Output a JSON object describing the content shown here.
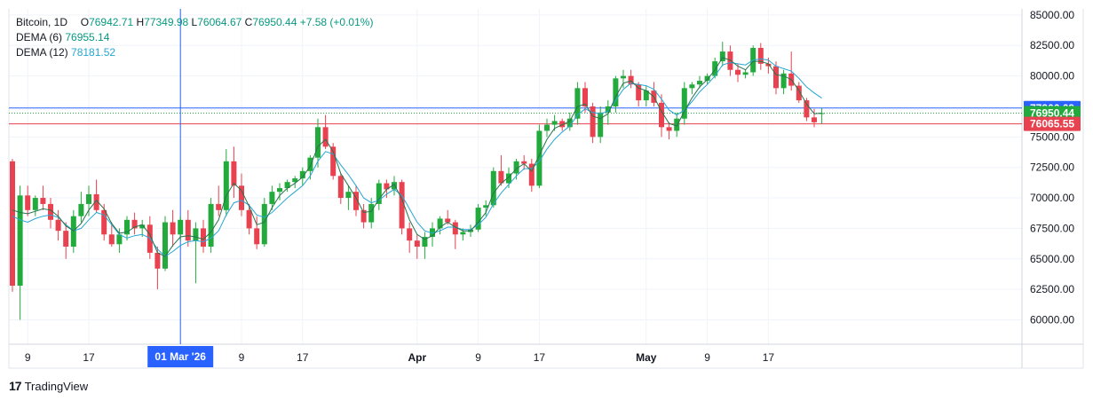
{
  "legend": {
    "symbol": "Bitcoin, 1D",
    "o_label": "O",
    "o": "76942.71",
    "h_label": "H",
    "h": "77349.98",
    "l_label": "L",
    "l": "76064.67",
    "c_label": "C",
    "c": "76950.44",
    "change": "+7.58 (+0.01%)",
    "dema6_label": "DEMA (6)",
    "dema6": "76955.14",
    "dema12_label": "DEMA (12)",
    "dema12": "78181.52"
  },
  "brand": {
    "logo": "17",
    "name": "TradingView"
  },
  "colors": {
    "up": "#22ab3c",
    "down": "#e8414f",
    "dema6": "#26734d",
    "dema12": "#26a6d4",
    "crosshair": "#2962ff"
  },
  "chart_data": {
    "type": "candlestick",
    "y_ticks": [
      "60000.00",
      "62500.00",
      "65000.00",
      "67500.00",
      "70000.00",
      "72500.00",
      "75000.00",
      "77500.00",
      "80000.00",
      "82500.00",
      "85000.00"
    ],
    "ylim": [
      58000,
      85500
    ],
    "x_ticks": [
      {
        "label": "9",
        "index": 2
      },
      {
        "label": "17",
        "index": 10
      },
      {
        "label": "01 Mar '26",
        "index": 22
      },
      {
        "label": "9",
        "index": 30
      },
      {
        "label": "17",
        "index": 38
      },
      {
        "label": "Apr",
        "index": 53
      },
      {
        "label": "9",
        "index": 61
      },
      {
        "label": "17",
        "index": 69
      },
      {
        "label": "May",
        "index": 83
      },
      {
        "label": "9",
        "index": 91
      },
      {
        "label": "17",
        "index": 99
      }
    ],
    "price_labels": [
      {
        "label": "77366.69",
        "value": 77366.69,
        "color": "#2962ff"
      },
      {
        "label": "76950.44",
        "value": 76950.44,
        "color": "#22ab3c"
      },
      {
        "label": "76065.55",
        "value": 76065.55,
        "color": "#e8414f"
      }
    ],
    "crosshair_index": 22,
    "ohlc": [
      [
        73000,
        73200,
        62300,
        62800
      ],
      [
        62800,
        71000,
        60000,
        70200
      ],
      [
        70200,
        71000,
        68500,
        69000
      ],
      [
        69000,
        70200,
        68500,
        70000
      ],
      [
        70000,
        71000,
        69000,
        69500
      ],
      [
        69500,
        70000,
        67500,
        68200
      ],
      [
        68200,
        69000,
        66500,
        67300
      ],
      [
        67300,
        68000,
        65000,
        66000
      ],
      [
        66000,
        69000,
        65500,
        68500
      ],
      [
        68500,
        70500,
        68000,
        69500
      ],
      [
        69500,
        71000,
        68500,
        70300
      ],
      [
        70300,
        71500,
        68800,
        69000
      ],
      [
        69000,
        69500,
        66500,
        67000
      ],
      [
        67000,
        68000,
        66000,
        66200
      ],
      [
        66200,
        67500,
        65500,
        67000
      ],
      [
        67000,
        68500,
        66500,
        68200
      ],
      [
        68200,
        68800,
        67000,
        67500
      ],
      [
        67500,
        68200,
        66800,
        67800
      ],
      [
        67800,
        68500,
        65000,
        65500
      ],
      [
        65500,
        66000,
        62500,
        64200
      ],
      [
        64200,
        68500,
        64000,
        68000
      ],
      [
        68000,
        69000,
        66000,
        67000
      ],
      [
        67000,
        68500,
        66500,
        68200
      ],
      [
        68200,
        69000,
        66000,
        66500
      ],
      [
        66500,
        68000,
        63000,
        67500
      ],
      [
        67500,
        68200,
        65500,
        66000
      ],
      [
        66000,
        70000,
        65500,
        69500
      ],
      [
        69500,
        71000,
        68500,
        69000
      ],
      [
        69000,
        74000,
        68500,
        73000
      ],
      [
        73000,
        74200,
        70000,
        71000
      ],
      [
        71000,
        72000,
        68500,
        69000
      ],
      [
        69000,
        69500,
        67000,
        67500
      ],
      [
        67500,
        68500,
        65800,
        66200
      ],
      [
        66200,
        70000,
        66000,
        69500
      ],
      [
        69500,
        71000,
        69000,
        70500
      ],
      [
        70500,
        71200,
        69800,
        70800
      ],
      [
        70800,
        71500,
        70500,
        71300
      ],
      [
        71300,
        71800,
        70800,
        71600
      ],
      [
        71600,
        72500,
        71000,
        72200
      ],
      [
        72200,
        73500,
        71500,
        73300
      ],
      [
        73300,
        76500,
        72500,
        75800
      ],
      [
        75800,
        76800,
        74000,
        74200
      ],
      [
        74200,
        74500,
        71500,
        71800
      ],
      [
        71800,
        72000,
        69500,
        70000
      ],
      [
        70000,
        71000,
        69000,
        70500
      ],
      [
        70500,
        71000,
        68500,
        69000
      ],
      [
        69000,
        69500,
        67500,
        68000
      ],
      [
        68000,
        70000,
        67500,
        69500
      ],
      [
        69500,
        71500,
        69000,
        71200
      ],
      [
        71200,
        71500,
        70000,
        70700
      ],
      [
        70700,
        71800,
        70200,
        71300
      ],
      [
        71300,
        71500,
        67000,
        67500
      ],
      [
        67500,
        68000,
        65500,
        66500
      ],
      [
        66500,
        67000,
        65000,
        66000
      ],
      [
        66000,
        67200,
        65000,
        66800
      ],
      [
        66800,
        68000,
        66000,
        67500
      ],
      [
        67500,
        68500,
        67000,
        68300
      ],
      [
        68300,
        69000,
        67800,
        68000
      ],
      [
        68000,
        68200,
        65800,
        67000
      ],
      [
        67000,
        67500,
        66500,
        67200
      ],
      [
        67200,
        67800,
        66800,
        67400
      ],
      [
        67400,
        69500,
        67200,
        69200
      ],
      [
        69200,
        69800,
        68500,
        69400
      ],
      [
        69400,
        72500,
        69200,
        72200
      ],
      [
        72200,
        73500,
        71000,
        71200
      ],
      [
        71200,
        72500,
        70800,
        72000
      ],
      [
        72000,
        73200,
        71500,
        73000
      ],
      [
        73000,
        73500,
        72300,
        72800
      ],
      [
        72800,
        73200,
        70500,
        71000
      ],
      [
        71000,
        76000,
        70800,
        75500
      ],
      [
        75500,
        76500,
        75000,
        76000
      ],
      [
        76000,
        76800,
        75500,
        76300
      ],
      [
        76300,
        76500,
        75500,
        75800
      ],
      [
        75800,
        77000,
        75500,
        76500
      ],
      [
        76500,
        79500,
        76000,
        79000
      ],
      [
        79000,
        79500,
        77000,
        77500
      ],
      [
        77500,
        77800,
        74500,
        75000
      ],
      [
        75000,
        77500,
        74500,
        77000
      ],
      [
        77000,
        78000,
        76000,
        77500
      ],
      [
        77500,
        80000,
        77000,
        79800
      ],
      [
        79800,
        80500,
        79000,
        80000
      ],
      [
        80000,
        80500,
        79000,
        79300
      ],
      [
        79300,
        79500,
        77500,
        78000
      ],
      [
        78000,
        79200,
        77500,
        78800
      ],
      [
        78800,
        79500,
        77500,
        77800
      ],
      [
        77800,
        78500,
        75000,
        75800
      ],
      [
        75800,
        76200,
        74800,
        75500
      ],
      [
        75500,
        77000,
        75000,
        76500
      ],
      [
        76500,
        79500,
        76000,
        79000
      ],
      [
        79000,
        79500,
        78500,
        79300
      ],
      [
        79300,
        80000,
        79000,
        79600
      ],
      [
        79600,
        80200,
        79300,
        80000
      ],
      [
        80000,
        81500,
        79800,
        81200
      ],
      [
        81200,
        82800,
        80800,
        82000
      ],
      [
        82000,
        82500,
        80000,
        80500
      ],
      [
        80500,
        81000,
        79500,
        80100
      ],
      [
        80100,
        80500,
        79800,
        80300
      ],
      [
        80300,
        82500,
        80000,
        82300
      ],
      [
        82300,
        82700,
        80500,
        81000
      ],
      [
        81000,
        81500,
        80200,
        80800
      ],
      [
        80800,
        81200,
        78500,
        79000
      ],
      [
        79000,
        80500,
        78500,
        80200
      ],
      [
        80200,
        82000,
        78800,
        79200
      ],
      [
        79200,
        79500,
        77800,
        78000
      ],
      [
        78000,
        78200,
        76300,
        76600
      ],
      [
        76600,
        77300,
        75800,
        76200
      ],
      [
        76950,
        77350,
        76060,
        76950
      ]
    ],
    "dema6": [
      69000,
      68800,
      68700,
      68900,
      69100,
      69000,
      68500,
      67700,
      67300,
      67900,
      69000,
      69800,
      69100,
      67900,
      67100,
      67200,
      67600,
      67800,
      67000,
      65500,
      65200,
      66100,
      66800,
      66900,
      66800,
      66600,
      67200,
      68200,
      70200,
      71200,
      70600,
      69300,
      67800,
      68000,
      69200,
      70200,
      70800,
      71200,
      71700,
      72600,
      74200,
      74800,
      73800,
      72000,
      71000,
      70000,
      68800,
      68900,
      69900,
      70700,
      71100,
      69900,
      68200,
      67000,
      66600,
      66900,
      67600,
      68000,
      67600,
      67300,
      67300,
      68000,
      68800,
      70400,
      71200,
      71700,
      72400,
      72800,
      72200,
      73500,
      74800,
      75700,
      76000,
      76300,
      77500,
      77700,
      76700,
      76500,
      76900,
      78300,
      79400,
      79600,
      79000,
      78800,
      78300,
      77100,
      76100,
      75900,
      77100,
      78200,
      79100,
      79700,
      80500,
      81500,
      81300,
      80800,
      80500,
      81200,
      81200,
      81000,
      80100,
      80000,
      79700,
      78800,
      77700,
      76900,
      76950
    ],
    "dema12": [
      68500,
      68200,
      68000,
      68300,
      68500,
      68600,
      68400,
      67800,
      67300,
      67500,
      68200,
      68800,
      68600,
      67800,
      67000,
      66700,
      66900,
      67000,
      66700,
      65800,
      65200,
      65600,
      66100,
      66400,
      66500,
      66400,
      66700,
      67300,
      68600,
      69600,
      69800,
      69400,
      68600,
      68400,
      68800,
      69400,
      70000,
      70500,
      71000,
      71800,
      73000,
      73800,
      73600,
      72700,
      71900,
      71000,
      70000,
      69600,
      69800,
      70300,
      70700,
      70200,
      69100,
      68000,
      67300,
      67100,
      67300,
      67600,
      67600,
      67400,
      67400,
      67800,
      68400,
      69500,
      70400,
      71100,
      71800,
      72400,
      72400,
      73000,
      74000,
      74800,
      75400,
      75900,
      76800,
      77300,
      77000,
      76900,
      77100,
      78000,
      78900,
      79400,
      79300,
      79200,
      78900,
      78100,
      77200,
      76800,
      77200,
      77900,
      78700,
      79300,
      80000,
      80900,
      81100,
      81000,
      80900,
      81300,
      81400,
      81300,
      80800,
      80600,
      80400,
      79800,
      79100,
      78600,
      78180
    ]
  }
}
